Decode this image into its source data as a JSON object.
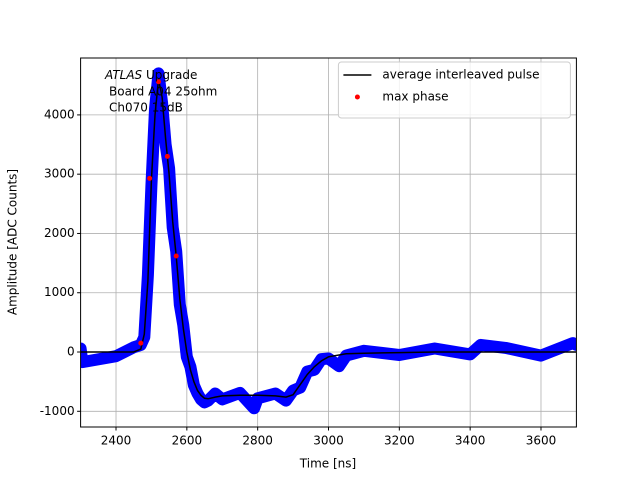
{
  "chart_data": {
    "type": "scatter",
    "xlabel": "Time [ns]",
    "ylabel": "Amplitude [ADC Counts]",
    "annotation": {
      "experiment": "ATLAS",
      "label": "Upgrade",
      "lines": [
        "Board A04 25ohm",
        "Ch070 15dB"
      ]
    },
    "xlim": [
      2300,
      3700
    ],
    "ylim": [
      -1265,
      4960
    ],
    "xticks": [
      2400,
      2600,
      2800,
      3000,
      3200,
      3400,
      3600
    ],
    "yticks": [
      -1000,
      0,
      1000,
      2000,
      3000,
      4000
    ],
    "grid": true,
    "legend": "upper right",
    "series": [
      {
        "kind": "band",
        "color": "#0000ff",
        "x": [
          2300,
          2305,
          2400,
          2450,
          2470,
          2480,
          2490,
          2500,
          2510,
          2520,
          2530,
          2540,
          2550,
          2560,
          2570,
          2580,
          2590,
          2600,
          2610,
          2620,
          2630,
          2640,
          2650,
          2660,
          2680,
          2700,
          2750,
          2790,
          2800,
          2850,
          2880,
          2900,
          2920,
          2940,
          2960,
          2980,
          3000,
          3030,
          3050,
          3100,
          3200,
          3300,
          3400,
          3430,
          3500,
          3600,
          3690,
          3700
        ],
        "values": [
          60,
          -170,
          -70,
          80,
          120,
          250,
          1300,
          2800,
          4100,
          4700,
          4200,
          3500,
          3100,
          2100,
          1700,
          800,
          450,
          -80,
          -250,
          -560,
          -700,
          -800,
          -850,
          -820,
          -700,
          -800,
          -690,
          -950,
          -780,
          -700,
          -820,
          -650,
          -600,
          -330,
          -300,
          -120,
          -110,
          -240,
          -60,
          20,
          -50,
          60,
          -40,
          120,
          70,
          -60,
          150,
          120
        ]
      },
      {
        "kind": "line",
        "name": "average interleaved pulse",
        "color": "#000000",
        "x": [
          2300,
          2400,
          2450,
          2470,
          2480,
          2490,
          2500,
          2510,
          2520,
          2530,
          2540,
          2550,
          2560,
          2570,
          2580,
          2590,
          2600,
          2610,
          2620,
          2630,
          2640,
          2650,
          2660,
          2680,
          2700,
          2750,
          2800,
          2850,
          2880,
          2900,
          2920,
          2940,
          2960,
          2980,
          3000,
          3050,
          3100,
          3200,
          3300,
          3400,
          3500,
          3600,
          3700
        ],
        "values": [
          0,
          0,
          0,
          50,
          300,
          1200,
          2900,
          4000,
          4600,
          4300,
          3600,
          3000,
          2200,
          1620,
          900,
          400,
          0,
          -300,
          -500,
          -650,
          -730,
          -780,
          -790,
          -760,
          -740,
          -730,
          -730,
          -740,
          -760,
          -720,
          -550,
          -380,
          -250,
          -150,
          -80,
          -30,
          -20,
          -10,
          0,
          0,
          0,
          0,
          0
        ]
      },
      {
        "kind": "points",
        "name": "max phase",
        "color": "#ff0000",
        "x": [
          2470,
          2495,
          2520,
          2545,
          2570
        ],
        "values": [
          150,
          2930,
          4560,
          3300,
          1620
        ]
      }
    ]
  }
}
